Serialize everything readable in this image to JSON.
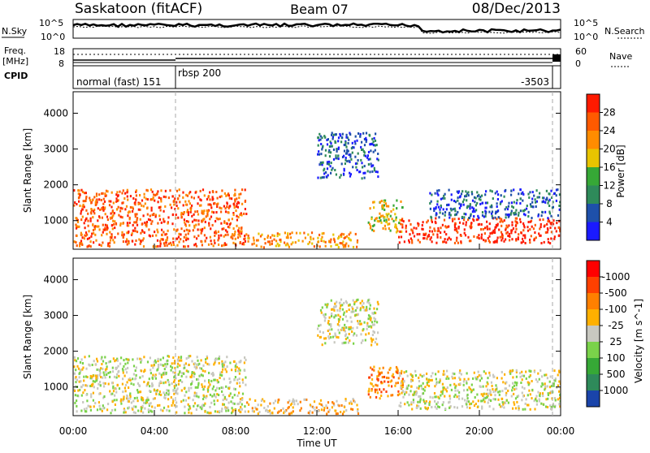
{
  "header": {
    "title": "Saskatoon (fitACF)",
    "beam": "Beam 07",
    "date": "08/Dec/2013"
  },
  "noise_panel": {
    "left_label": "N.Sky",
    "right_label": "N.Search",
    "left_ticks": [
      "10^5",
      "10^0"
    ],
    "right_ticks": [
      "10^5",
      "10^0"
    ]
  },
  "freq_panel": {
    "left_label_1": "Freq.",
    "left_label_2": "[MHz]",
    "right_label": "Nave",
    "left_ticks": [
      "18",
      "8"
    ],
    "right_ticks": [
      "60",
      "0"
    ]
  },
  "cpid_panel": {
    "label": "CPID",
    "entries": [
      "normal (fast) 151",
      "rbsp 200",
      "-3503"
    ]
  },
  "time_axis": {
    "label": "Time UT",
    "ticks": [
      "00:00",
      "04:00",
      "08:00",
      "12:00",
      "16:00",
      "20:00",
      "00:00"
    ]
  },
  "chart_data": [
    {
      "type": "heatmap",
      "name": "power",
      "ylabel": "Slant Range [km]",
      "yticks": [
        "1000",
        "2000",
        "3000",
        "4000"
      ],
      "ylim": [
        200,
        4600
      ],
      "xlim": [
        0,
        24
      ],
      "colorbar_label": "Power [dB]",
      "colorbar_ticks": [
        "4",
        "8",
        "12",
        "16",
        "20",
        "24",
        "28"
      ],
      "colors": [
        "#1a1aff",
        "#1e50aa",
        "#2e8a5a",
        "#36a836",
        "#e8c400",
        "#ff8c00",
        "#ff5a00",
        "#ff1a00"
      ],
      "regions": [
        {
          "t": [
            0.0,
            8.5
          ],
          "r": [
            300,
            1900
          ],
          "level": 6
        },
        {
          "t": [
            8.5,
            14.0
          ],
          "r": [
            280,
            700
          ],
          "level": 5
        },
        {
          "t": [
            14.5,
            16.2
          ],
          "r": [
            700,
            1600
          ],
          "level": 4
        },
        {
          "t": [
            16.0,
            24.0
          ],
          "r": [
            400,
            1100
          ],
          "level": 7
        },
        {
          "t": [
            12.0,
            15.0
          ],
          "r": [
            2200,
            3500
          ],
          "level": 1
        },
        {
          "t": [
            17.5,
            24.0
          ],
          "r": [
            1100,
            1900
          ],
          "level": 1
        }
      ]
    },
    {
      "type": "heatmap",
      "name": "velocity",
      "ylabel": "Slant Range [km]",
      "yticks": [
        "1000",
        "2000",
        "3000",
        "4000"
      ],
      "ylim": [
        200,
        4600
      ],
      "xlim": [
        0,
        24
      ],
      "colorbar_label": "Velocity [m s^-1]",
      "colorbar_ticks": [
        "1000",
        "500",
        "100",
        "25",
        "-25",
        "-100",
        "-500",
        "-1000"
      ],
      "colors": [
        "#1a44aa",
        "#2e8a5a",
        "#36a836",
        "#7ad24a",
        "#c8c8c0",
        "#ffb000",
        "#ff8000",
        "#ff4000",
        "#ff0000"
      ],
      "regions": [
        {
          "t": [
            0.0,
            8.5
          ],
          "r": [
            300,
            1900
          ],
          "level": 4
        },
        {
          "t": [
            8.5,
            14.0
          ],
          "r": [
            280,
            700
          ],
          "level": 5
        },
        {
          "t": [
            14.5,
            16.2
          ],
          "r": [
            700,
            1600
          ],
          "level": 6
        },
        {
          "t": [
            16.0,
            24.0
          ],
          "r": [
            400,
            1500
          ],
          "level": 4
        },
        {
          "t": [
            12.0,
            15.0
          ],
          "r": [
            2200,
            3500
          ],
          "level": 4
        }
      ]
    }
  ]
}
